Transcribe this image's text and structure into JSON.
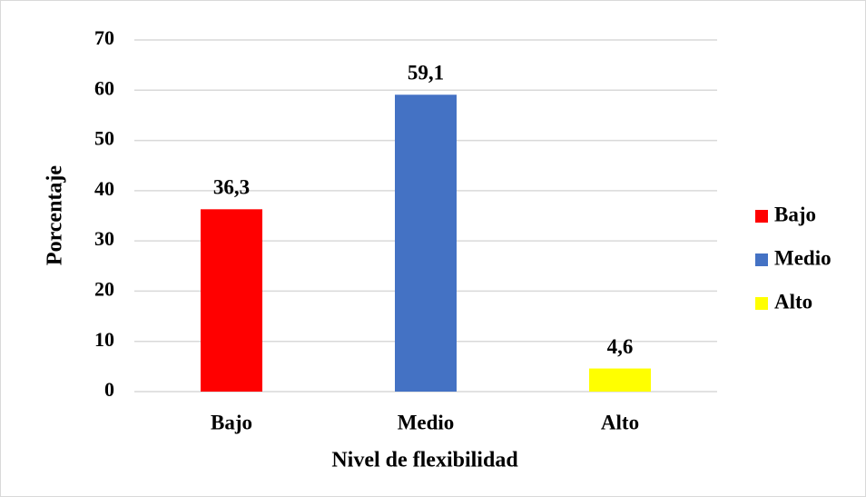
{
  "chart_data": {
    "type": "bar",
    "x_label": "Nivel de flexibilidad",
    "y_label": "Porcentaje",
    "categories": [
      "Bajo",
      "Medio",
      "Alto"
    ],
    "values": [
      36.3,
      59.1,
      4.6
    ],
    "value_labels": [
      "36,3",
      "59,1",
      "4,6"
    ],
    "colors": [
      "#ff0000",
      "#4472c4",
      "#ffff00"
    ],
    "ylim": [
      0,
      70
    ],
    "yticks": [
      0,
      10,
      20,
      30,
      40,
      50,
      60,
      70
    ],
    "grid": true,
    "legend": "right"
  }
}
